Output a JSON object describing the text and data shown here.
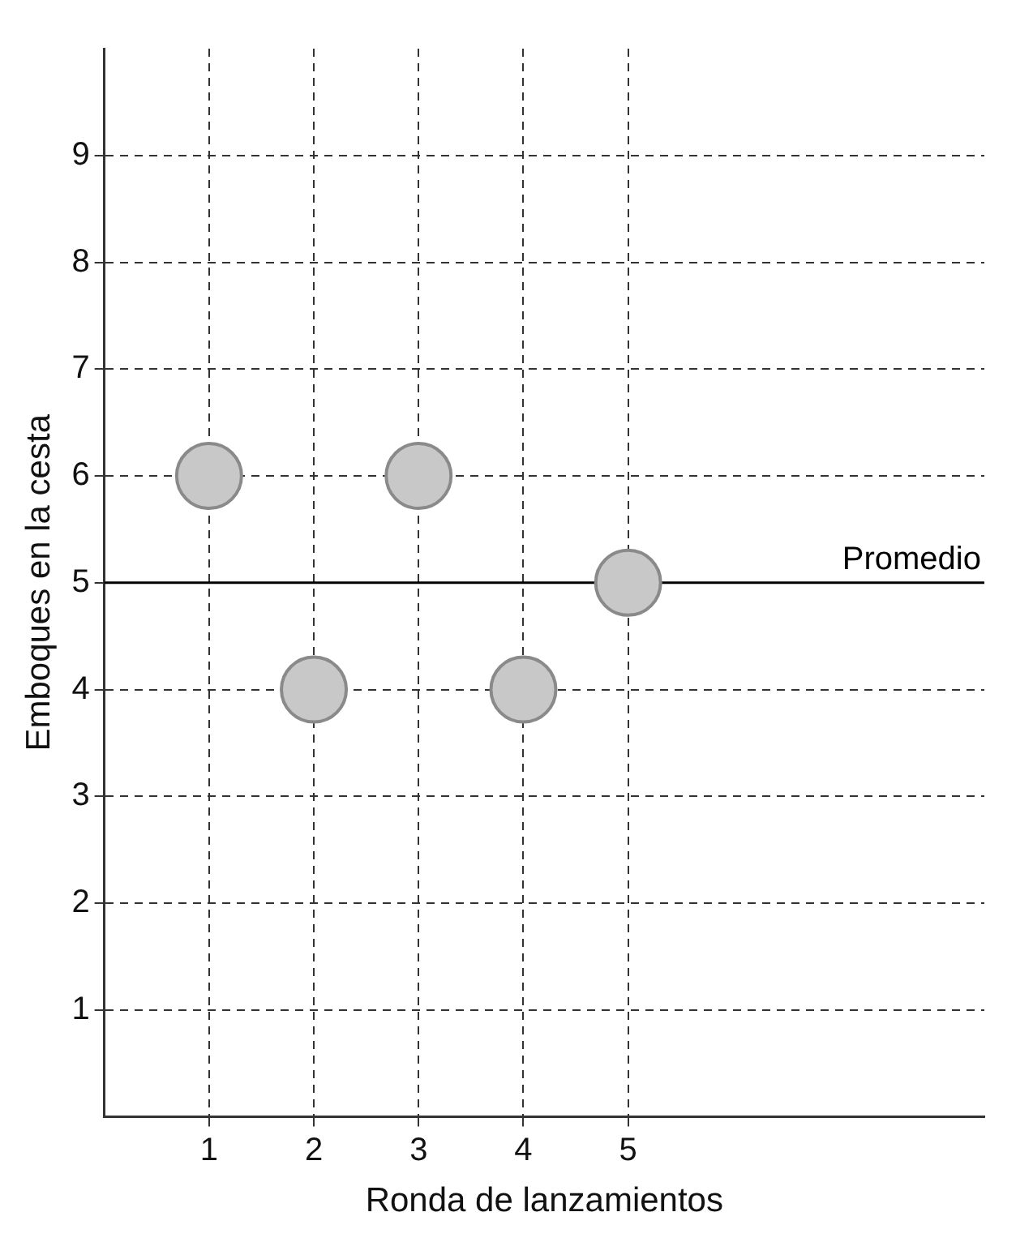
{
  "chart_data": {
    "type": "scatter",
    "xlabel": "Ronda de lanzamientos",
    "ylabel": "Emboques en la cesta",
    "x": [
      1,
      2,
      3,
      4,
      5
    ],
    "series": [
      {
        "color": "#c8c8c8",
        "values": [
          6,
          4,
          6,
          4,
          5
        ]
      }
    ],
    "xlim": [
      0,
      8.4
    ],
    "xticks": [
      1,
      2,
      3,
      4,
      5
    ],
    "ylim": [
      0,
      10
    ],
    "yticks": [
      1,
      2,
      3,
      4,
      5,
      6,
      7,
      8,
      9
    ],
    "grid": true,
    "legend": false,
    "marker": "circle",
    "ref_lines": [
      {
        "axis": "y",
        "value": 5,
        "label": "Promedio",
        "color": "#000000",
        "line_style": "solid"
      }
    ]
  }
}
